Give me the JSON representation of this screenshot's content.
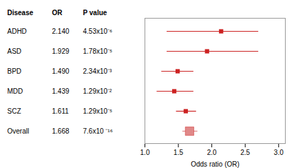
{
  "chart_data": {
    "type": "forest",
    "categories": [
      "ADHD",
      "ASD",
      "BPD",
      "MDD",
      "SCZ",
      "Overall"
    ],
    "values": [
      2.14,
      1.929,
      1.49,
      1.439,
      1.611,
      1.668
    ],
    "value_labels": [
      "2.140",
      "1.929",
      "1.490",
      "1.439",
      "1.611",
      "1.668"
    ],
    "ci_low": [
      1.33,
      1.33,
      1.25,
      1.18,
      1.47,
      1.565
    ],
    "ci_high": [
      2.7,
      2.7,
      1.73,
      1.73,
      1.77,
      1.79
    ],
    "p_values": [
      "4.53x10⁻⁶",
      "1.78x10⁻⁵",
      "2.34x10⁻³",
      "1.29x10⁻²",
      "1.29x10⁻⁵",
      "7.6x10 ⁻¹⁶"
    ],
    "columns": [
      "Disease",
      "OR",
      "P value"
    ],
    "xlabel": "Odds ratio (OR)",
    "xlim": [
      1.0,
      3.1
    ],
    "xticks": [
      {
        "value": 1.0,
        "label": "1.0"
      },
      1.5,
      {
        "value": 2.0,
        "label": "2.0"
      },
      2.5,
      {
        "value": 3.0,
        "label": "3.0"
      }
    ],
    "colors": [
      "#cc2222",
      "#cc2222",
      "#cc2222",
      "#cc2222",
      "#cc2222",
      "#e08888"
    ],
    "data_labels": true
  }
}
